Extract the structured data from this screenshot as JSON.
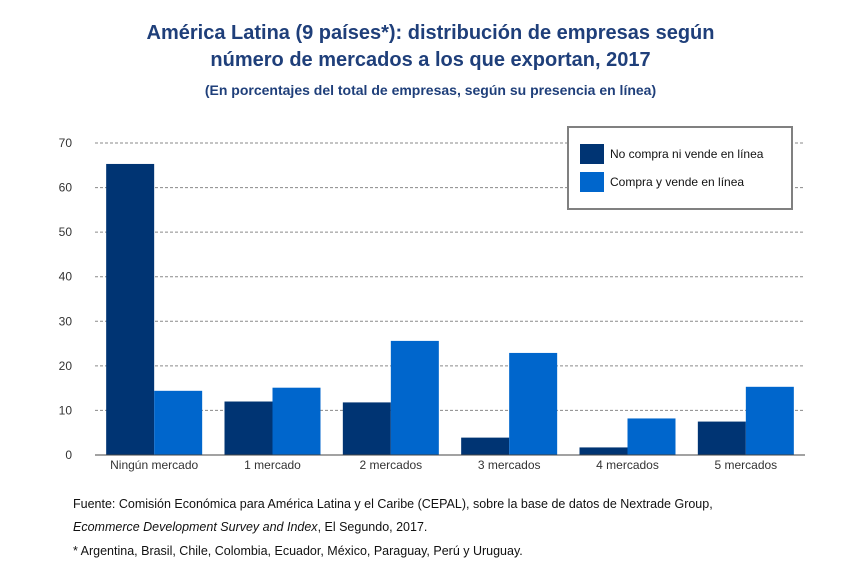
{
  "header": {
    "title_line1": "América Latina (9 países*): distribución de empresas según",
    "title_line2": "número de mercados a los que exportan, 2017",
    "subtitle": "(En porcentajes del total de empresas, según su presencia en línea)"
  },
  "chart_data": {
    "type": "bar",
    "title": "América Latina (9 países*): distribución de empresas según número de mercados a los que exportan, 2017",
    "subtitle": "(En porcentajes del total de empresas, según su presencia en línea)",
    "categories": [
      "Ningún mercado",
      "1 mercado",
      "2 mercados",
      "3 mercados",
      "4 mercados",
      "5 mercados"
    ],
    "series": [
      {
        "name": "No compra ni vende en línea",
        "color": "#003473",
        "values": [
          65.3,
          12.0,
          11.8,
          3.9,
          1.7,
          7.5
        ]
      },
      {
        "name": "Compra y vende en línea",
        "color": "#0066cc",
        "values": [
          14.4,
          15.1,
          25.6,
          22.9,
          8.2,
          15.3
        ]
      }
    ],
    "yticks": [
      0,
      10,
      20,
      30,
      40,
      50,
      60,
      70
    ],
    "ylim": [
      0,
      70
    ],
    "xlabel": "",
    "ylabel": "",
    "grid": true,
    "legend_position": "top-right"
  },
  "footer": {
    "source_line1": "Fuente: Comisión Económica para América Latina y el Caribe (CEPAL), sobre la base de datos de Nextrade Group,",
    "source_italic": "Ecommerce Development Survey and Index",
    "source_tail": ",  El Segundo, 2017.",
    "note": "* Argentina, Brasil, Chile, Colombia, Ecuador, México, Paraguay, Perú y Uruguay."
  }
}
